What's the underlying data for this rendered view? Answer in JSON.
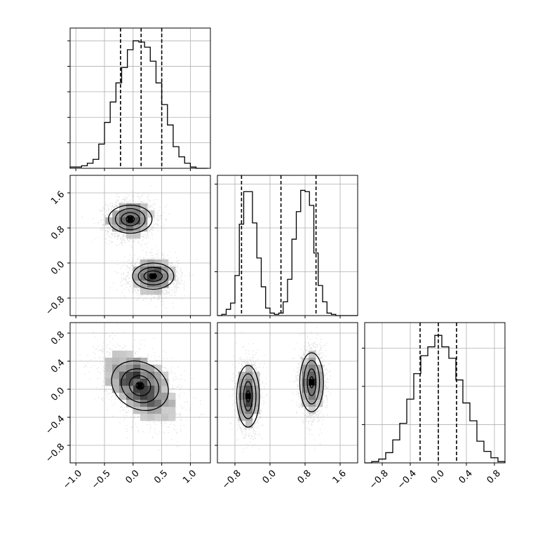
{
  "chart_data": {
    "type": "corner",
    "title": "",
    "grid": true,
    "parameters": [
      {
        "index": 0,
        "range": [
          -1.1,
          1.35
        ],
        "ticks": [
          -1.0,
          -0.5,
          0.0,
          0.5,
          1.0
        ],
        "tick_labels": [
          "−1.0",
          "−0.5",
          "0.0",
          "0.5",
          "1.0"
        ],
        "quantiles": [
          -0.22,
          0.14,
          0.5
        ]
      },
      {
        "index": 1,
        "range": [
          -1.2,
          2.0
        ],
        "ticks": [
          -0.8,
          0.0,
          0.8,
          1.6
        ],
        "tick_labels": [
          "−0.8",
          "0.0",
          "0.8",
          "1.6"
        ],
        "quantiles": [
          -0.65,
          0.25,
          1.05
        ]
      },
      {
        "index": 2,
        "range": [
          -1.05,
          0.95
        ],
        "ticks": [
          -0.8,
          -0.4,
          0.0,
          0.4,
          0.8
        ],
        "tick_labels": [
          "−0.8",
          "−0.4",
          "0.0",
          "0.4",
          "0.8"
        ],
        "quantiles": [
          -0.26,
          0.0,
          0.26
        ]
      }
    ],
    "histograms": [
      {
        "param": 0,
        "bin_edges": [
          -1.1,
          -1.0,
          -0.9,
          -0.8,
          -0.7,
          -0.6,
          -0.5,
          -0.4,
          -0.3,
          -0.2,
          -0.1,
          0.0,
          0.1,
          0.2,
          0.3,
          0.4,
          0.5,
          0.6,
          0.7,
          0.8,
          0.9,
          1.0,
          1.1,
          1.2,
          1.3
        ],
        "counts": [
          0.01,
          0.01,
          0.02,
          0.04,
          0.07,
          0.19,
          0.36,
          0.52,
          0.67,
          0.79,
          0.93,
          1.0,
          0.99,
          0.95,
          0.84,
          0.67,
          0.5,
          0.34,
          0.17,
          0.09,
          0.04,
          0.01,
          0.0,
          0.0
        ],
        "ylim": [
          0,
          1.1
        ],
        "yticks": [
          0.2,
          0.4,
          0.6,
          0.8,
          1.0
        ]
      },
      {
        "param": 1,
        "bin_edges": [
          -1.2,
          -1.1,
          -1.0,
          -0.9,
          -0.8,
          -0.7,
          -0.6,
          -0.5,
          -0.4,
          -0.3,
          -0.2,
          -0.1,
          0.0,
          0.1,
          0.2,
          0.3,
          0.4,
          0.5,
          0.6,
          0.7,
          0.8,
          0.9,
          1.0,
          1.1,
          1.2,
          1.3,
          1.4,
          1.5,
          1.6,
          1.7,
          1.8,
          1.9,
          2.0
        ],
        "counts": [
          0.0,
          0.01,
          0.05,
          0.1,
          0.32,
          0.73,
          0.99,
          0.99,
          0.74,
          0.46,
          0.23,
          0.06,
          0.02,
          0.01,
          0.02,
          0.11,
          0.29,
          0.61,
          0.83,
          1.0,
          0.99,
          0.88,
          0.5,
          0.24,
          0.11,
          0.02,
          0.01,
          0.0,
          0.0,
          0.0,
          0.0,
          0.0
        ],
        "ylim": [
          0,
          1.12
        ],
        "yticks": [
          0.35,
          0.7,
          1.05
        ]
      },
      {
        "param": 2,
        "bin_edges": [
          -1.05,
          -0.95,
          -0.85,
          -0.75,
          -0.65,
          -0.55,
          -0.45,
          -0.35,
          -0.25,
          -0.15,
          -0.05,
          0.05,
          0.15,
          0.25,
          0.35,
          0.45,
          0.55,
          0.65,
          0.75,
          0.85,
          0.95
        ],
        "counts": [
          0.0,
          0.01,
          0.03,
          0.08,
          0.18,
          0.31,
          0.5,
          0.7,
          0.84,
          0.91,
          1.0,
          0.91,
          0.82,
          0.65,
          0.47,
          0.33,
          0.17,
          0.09,
          0.04,
          0.01
        ],
        "ylim": [
          0,
          1.1
        ],
        "yticks": [
          0.3,
          0.6,
          0.9
        ]
      }
    ],
    "panels_2d": [
      {
        "x": 0,
        "y": 1,
        "clusters": [
          {
            "cx": -0.05,
            "cy": 1.0,
            "sx": 0.21,
            "sy": 0.22,
            "rho": 0.05,
            "levels": [
              [
                0.07,
                0.08
              ],
              [
                0.16,
                0.15
              ],
              [
                0.26,
                0.24
              ],
              [
                0.38,
                0.32
              ]
            ],
            "core": 0.85
          },
          {
            "cx": 0.35,
            "cy": -0.3,
            "sx": 0.21,
            "sy": 0.2,
            "rho": -0.05,
            "levels": [
              [
                0.06,
                0.05
              ],
              [
                0.16,
                0.12
              ],
              [
                0.26,
                0.2
              ],
              [
                0.36,
                0.3
              ]
            ],
            "core": 0.95
          }
        ]
      },
      {
        "x": 0,
        "y": 2,
        "clusters": [
          {
            "cx": 0.12,
            "cy": 0.05,
            "sx": 0.33,
            "sy": 0.26,
            "rho": -0.45,
            "levels": [
              [
                0.07,
                0.05
              ],
              [
                0.19,
                0.14
              ],
              [
                0.34,
                0.23
              ],
              [
                0.52,
                0.33
              ]
            ],
            "core": 0.9
          }
        ]
      },
      {
        "x": 1,
        "y": 2,
        "clusters": [
          {
            "cx": -0.5,
            "cy": -0.1,
            "sx": 0.13,
            "sy": 0.24,
            "rho": 0.0,
            "levels": [
              [
                0.04,
                0.08
              ],
              [
                0.1,
                0.21
              ],
              [
                0.18,
                0.32
              ],
              [
                0.26,
                0.44
              ]
            ],
            "core": 0.9
          },
          {
            "cx": 0.95,
            "cy": 0.1,
            "sx": 0.14,
            "sy": 0.24,
            "rho": 0.0,
            "levels": [
              [
                0.04,
                0.08
              ],
              [
                0.1,
                0.19
              ],
              [
                0.18,
                0.31
              ],
              [
                0.27,
                0.42
              ]
            ],
            "core": 0.9
          }
        ]
      }
    ]
  }
}
